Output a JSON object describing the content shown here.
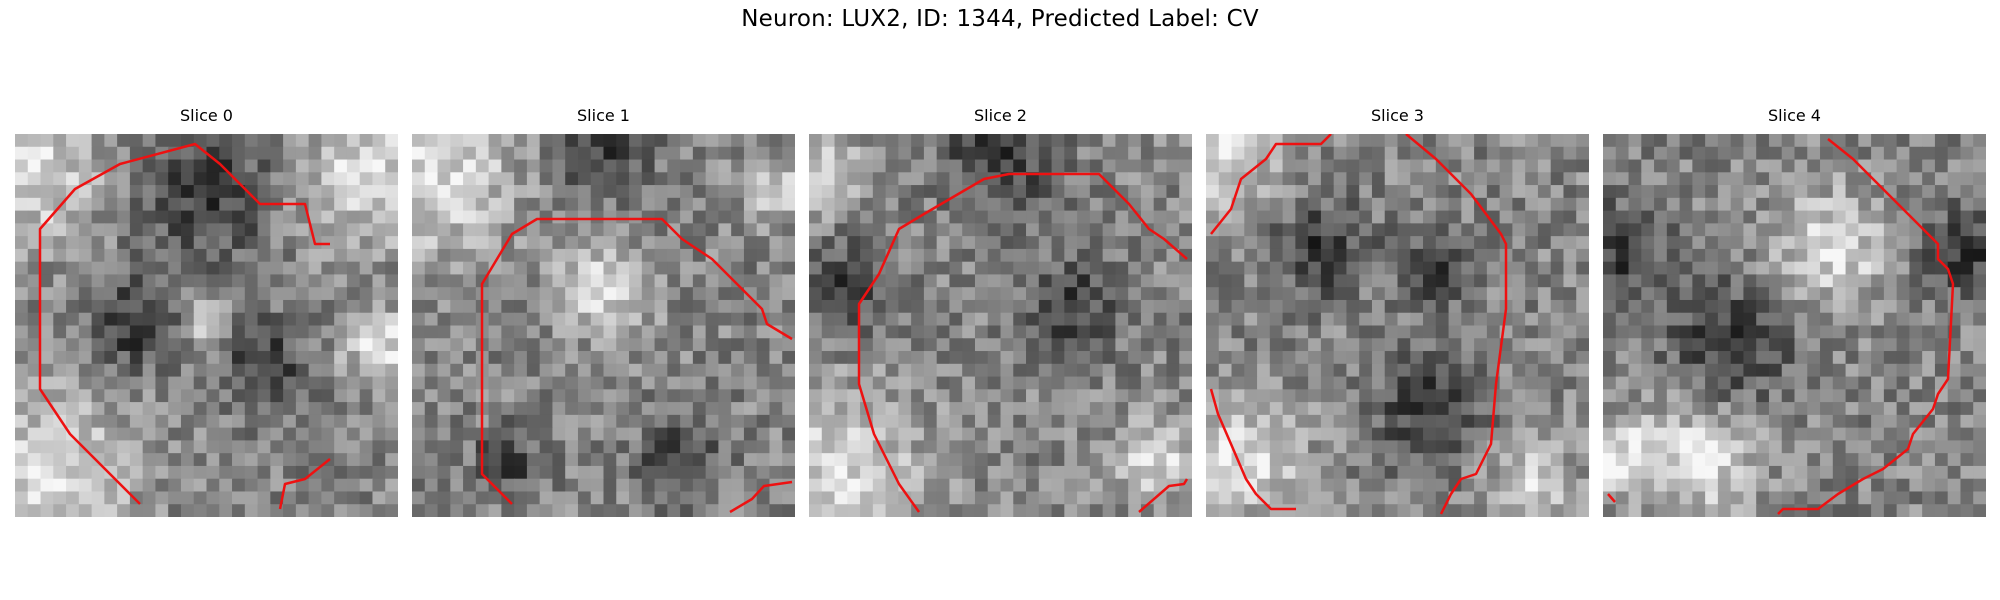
{
  "figure": {
    "title": "Neuron: LUX2, ID: 1344, Predicted Label: CV"
  },
  "colors": {
    "contour": "#ee1111",
    "background": "#ffffff"
  },
  "panels": [
    {
      "title": "Slice 0",
      "seed": 11,
      "bright": [
        [
          0.08,
          0.9,
          0.22
        ],
        [
          0.05,
          0.1,
          0.18
        ],
        [
          0.92,
          0.1,
          0.18
        ],
        [
          0.5,
          0.5,
          0.06
        ],
        [
          0.95,
          0.55,
          0.1
        ]
      ],
      "dark": [
        [
          0.5,
          0.15,
          0.18
        ],
        [
          0.3,
          0.5,
          0.12
        ],
        [
          0.65,
          0.6,
          0.12
        ]
      ]
    },
    {
      "title": "Slice 1",
      "seed": 23,
      "bright": [
        [
          0.05,
          0.1,
          0.22
        ],
        [
          0.5,
          0.4,
          0.12
        ],
        [
          0.95,
          0.15,
          0.08
        ]
      ],
      "dark": [
        [
          0.5,
          0.05,
          0.12
        ],
        [
          0.7,
          0.85,
          0.1
        ],
        [
          0.25,
          0.85,
          0.08
        ]
      ]
    },
    {
      "title": "Slice 2",
      "seed": 37,
      "bright": [
        [
          0.08,
          0.9,
          0.22
        ],
        [
          0.05,
          0.1,
          0.1
        ],
        [
          0.9,
          0.85,
          0.1
        ]
      ],
      "dark": [
        [
          0.5,
          0.05,
          0.15
        ],
        [
          0.68,
          0.45,
          0.12
        ],
        [
          0.1,
          0.4,
          0.12
        ]
      ]
    },
    {
      "title": "Slice 3",
      "seed": 51,
      "bright": [
        [
          0.05,
          0.05,
          0.15
        ],
        [
          0.1,
          0.85,
          0.15
        ],
        [
          0.85,
          0.9,
          0.1
        ]
      ],
      "dark": [
        [
          0.58,
          0.72,
          0.14
        ],
        [
          0.6,
          0.35,
          0.1
        ],
        [
          0.3,
          0.3,
          0.12
        ]
      ]
    },
    {
      "title": "Slice 4",
      "seed": 67,
      "bright": [
        [
          0.6,
          0.3,
          0.15
        ],
        [
          0.25,
          0.85,
          0.15
        ],
        [
          0.05,
          0.85,
          0.1
        ]
      ],
      "dark": [
        [
          0.33,
          0.55,
          0.16
        ],
        [
          0.05,
          0.3,
          0.12
        ],
        [
          0.95,
          0.3,
          0.12
        ]
      ]
    }
  ]
}
